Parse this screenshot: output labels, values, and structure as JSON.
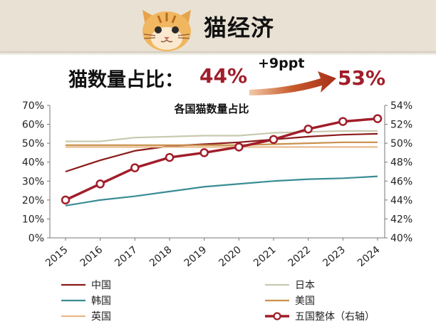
{
  "header": {
    "title": "猫经济",
    "mascot_icon": "cat-face-icon"
  },
  "summary": {
    "label": "猫数量占比：",
    "from_value": "44%",
    "to_value": "53%",
    "change": "+9ppt",
    "arrow_icon": "curved-arrow-icon",
    "accent_color": "#a01e2a"
  },
  "chart_data": {
    "type": "line",
    "title": "各国猫数量占比",
    "categories": [
      "2015",
      "2016",
      "2017",
      "2018",
      "2019",
      "2020",
      "2021",
      "2022",
      "2023",
      "2024"
    ],
    "y_left": {
      "range": [
        0,
        70
      ],
      "ticks": [
        "0%",
        "10%",
        "20%",
        "30%",
        "40%",
        "50%",
        "60%",
        "70%"
      ]
    },
    "y_right": {
      "range": [
        40,
        54
      ],
      "ticks": [
        "40%",
        "42%",
        "44%",
        "46%",
        "48%",
        "50%",
        "52%",
        "54%"
      ]
    },
    "grid": false,
    "legend_position": "bottom",
    "series": [
      {
        "name": "中国",
        "color": "#8b1a1a",
        "axis": "left",
        "values": [
          35,
          41,
          46,
          48.5,
          49.5,
          50.5,
          52,
          53.5,
          54.5,
          55
        ]
      },
      {
        "name": "日本",
        "color": "#c9c9b0",
        "axis": "left",
        "values": [
          51,
          51,
          53,
          53.5,
          54,
          54,
          55.5,
          56,
          56.5,
          56.5
        ]
      },
      {
        "name": "韩国",
        "color": "#3a8c94",
        "axis": "left",
        "values": [
          17,
          20,
          22,
          24.5,
          27,
          28.5,
          30,
          31,
          31.5,
          32.5
        ]
      },
      {
        "name": "美国",
        "color": "#c9904a",
        "axis": "left",
        "values": [
          49,
          49,
          49,
          49,
          49,
          49,
          49.5,
          50,
          50.5,
          50.5
        ]
      },
      {
        "name": "英国",
        "color": "#e8b889",
        "axis": "left",
        "values": [
          48,
          48,
          48,
          48,
          48,
          48,
          48,
          48,
          48,
          48
        ]
      },
      {
        "name": "五国整体（右轴）",
        "color": "#a01e2a",
        "axis": "right",
        "markers": true,
        "values": [
          44.0,
          45.7,
          47.4,
          48.5,
          49.0,
          49.6,
          50.4,
          51.5,
          52.3,
          52.6
        ]
      }
    ]
  }
}
